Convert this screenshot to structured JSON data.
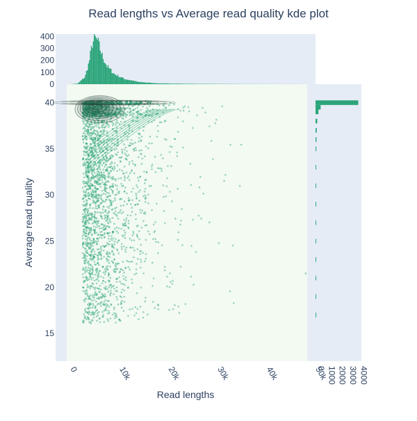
{
  "chart_data": {
    "type": "scatter",
    "title": "Read lengths vs Average read quality kde plot",
    "xlabel": "Read lengths",
    "ylabel": "Average read quality",
    "xlim": [
      -3000,
      50000
    ],
    "ylim": [
      12,
      42
    ],
    "x_ticks": [
      0,
      10000,
      20000,
      30000,
      40000,
      50000
    ],
    "x_tick_labels": [
      "0",
      "10k",
      "20k",
      "30k",
      "40k",
      "50k"
    ],
    "y_ticks": [
      15,
      20,
      25,
      30,
      35,
      40
    ],
    "y_tick_labels": [
      "15",
      "20",
      "25",
      "30",
      "35",
      "40"
    ],
    "top_hist": {
      "ylim": [
        0,
        420
      ],
      "ticks": [
        0,
        100,
        200,
        300,
        400
      ],
      "tick_labels": [
        "0",
        "100",
        "200",
        "300",
        "400"
      ],
      "profile": [
        [
          0,
          0
        ],
        [
          1500,
          5
        ],
        [
          3000,
          60
        ],
        [
          3800,
          180
        ],
        [
          4500,
          340
        ],
        [
          5000,
          385
        ],
        [
          5600,
          360
        ],
        [
          6500,
          240
        ],
        [
          7500,
          150
        ],
        [
          9000,
          85
        ],
        [
          11000,
          45
        ],
        [
          14000,
          18
        ],
        [
          18000,
          7
        ],
        [
          25000,
          3
        ],
        [
          35000,
          1
        ],
        [
          50000,
          0
        ]
      ]
    },
    "right_hist": {
      "xlim": [
        0,
        4100
      ],
      "ticks": [
        0,
        1000,
        2000,
        3000,
        4000
      ],
      "tick_labels": [
        "0",
        "1000",
        "2000",
        "3000",
        "4000"
      ],
      "bars": [
        {
          "q": 40,
          "count": 4000
        },
        {
          "q": 39.5,
          "count": 480
        },
        {
          "q": 39,
          "count": 270
        },
        {
          "q": 38,
          "count": 160
        },
        {
          "q": 37,
          "count": 110
        },
        {
          "q": 36,
          "count": 90
        },
        {
          "q": 35,
          "count": 75
        },
        {
          "q": 33,
          "count": 60
        },
        {
          "q": 31,
          "count": 55
        },
        {
          "q": 29,
          "count": 45
        },
        {
          "q": 27,
          "count": 35
        },
        {
          "q": 25,
          "count": 25
        },
        {
          "q": 23,
          "count": 20
        },
        {
          "q": 21,
          "count": 15
        },
        {
          "q": 19,
          "count": 10
        },
        {
          "q": 17,
          "count": 6
        }
      ]
    },
    "colors": {
      "points": "#2ca57a",
      "hist": "#2ca57a",
      "kde": "#1e3a2e",
      "main_bg": "#f3faf2",
      "margin_bg": "#e5ecf6",
      "text": "#2a3f5f"
    },
    "grid": false,
    "legend": "none"
  }
}
